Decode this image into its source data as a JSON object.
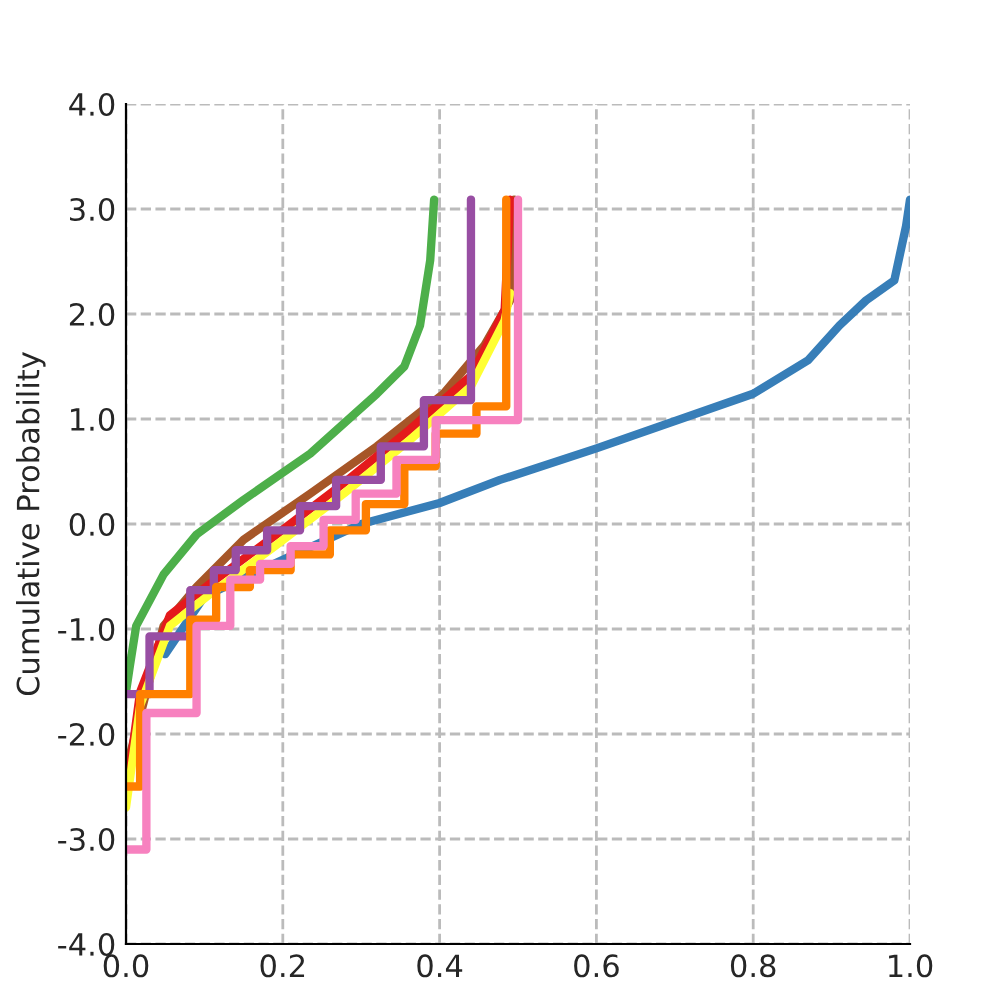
{
  "chart_data": {
    "type": "step",
    "ylabel": "Cumulative Probability",
    "xlim": [
      0,
      1
    ],
    "ylim": [
      -4,
      4
    ],
    "xticks": [
      {
        "value": 0,
        "label": "0.0"
      },
      {
        "value": 0.2,
        "label": "0.2"
      },
      {
        "value": 0.4,
        "label": "0.4"
      },
      {
        "value": 0.6,
        "label": "0.6"
      },
      {
        "value": 0.8,
        "label": "0.8"
      },
      {
        "value": 1,
        "label": "1.0"
      }
    ],
    "yticks": [
      {
        "value": -4,
        "label": "-4.0"
      },
      {
        "value": -3,
        "label": "-3.0"
      },
      {
        "value": -2,
        "label": "-2.0"
      },
      {
        "value": -1,
        "label": "-1.0"
      },
      {
        "value": 0,
        "label": "0.0"
      },
      {
        "value": 1,
        "label": "1.0"
      },
      {
        "value": 2,
        "label": "2.0"
      },
      {
        "value": 3,
        "label": "3.0"
      },
      {
        "value": 4,
        "label": "4.0"
      }
    ],
    "grid": true,
    "line_style": "solid",
    "marker": "none",
    "series": [
      {
        "type": "line",
        "color": "#377eb8",
        "x": [
          0.05,
          0.1,
          0.2,
          0.3,
          0.4,
          0.477,
          0.6,
          0.8,
          0.87,
          0.91,
          0.944,
          0.98,
          0.995,
          1.0
        ],
        "values": [
          -1.24,
          -0.69,
          -0.34,
          0.0,
          0.2,
          0.42,
          0.72,
          1.24,
          1.56,
          1.89,
          2.13,
          2.32,
          2.84,
          3.09
        ]
      },
      {
        "type": "line",
        "color": "#4daf4a",
        "x": [
          0,
          0.005,
          0.013,
          0.048,
          0.09,
          0.15,
          0.235,
          0.32,
          0.355,
          0.375,
          0.388,
          0.393
        ],
        "values": [
          -1.6,
          -1.35,
          -0.97,
          -0.48,
          -0.1,
          0.23,
          0.67,
          1.24,
          1.5,
          1.89,
          2.51,
          3.09
        ]
      },
      {
        "type": "line",
        "color": "#a65628",
        "x": [
          0,
          0.005,
          0.048,
          0.09,
          0.15,
          0.235,
          0.32,
          0.405,
          0.457,
          0.49,
          0.495
        ],
        "values": [
          -2.5,
          -2.2,
          -0.97,
          -0.6,
          -0.15,
          0.29,
          0.74,
          1.24,
          1.7,
          2.13,
          3.09
        ]
      },
      {
        "type": "line",
        "color": "#e41a1c",
        "x": [
          0,
          0.018,
          0.056,
          0.107,
          0.19,
          0.278,
          0.362,
          0.44,
          0.483,
          0.49
        ],
        "values": [
          -2.6,
          -1.6,
          -0.87,
          -0.57,
          -0.11,
          0.39,
          0.9,
          1.41,
          2.04,
          3.09
        ]
      },
      {
        "type": "line",
        "color": "#ffff33",
        "x": [
          0,
          0.018,
          0.056,
          0.107,
          0.19,
          0.278,
          0.362,
          0.44,
          0.483,
          0.49
        ],
        "values": [
          -2.7,
          -1.73,
          -0.97,
          -0.67,
          -0.21,
          0.29,
          0.8,
          1.31,
          1.94,
          2.2
        ]
      },
      {
        "color": "#984ea3",
        "x": [
          0,
          0.03,
          0.082,
          0.112,
          0.14,
          0.18,
          0.222,
          0.268,
          0.325,
          0.38,
          0.44,
          0.44
        ],
        "values": [
          -1.62,
          -1.07,
          -0.63,
          -0.44,
          -0.25,
          -0.06,
          0.17,
          0.42,
          0.74,
          1.18,
          1.37,
          3.09
        ]
      },
      {
        "color": "#ff7f00",
        "x": [
          0,
          0.018,
          0.082,
          0.115,
          0.158,
          0.21,
          0.26,
          0.306,
          0.355,
          0.395,
          0.447,
          0.485,
          0.485
        ],
        "values": [
          -2.5,
          -1.62,
          -0.91,
          -0.6,
          -0.44,
          -0.29,
          -0.06,
          0.19,
          0.55,
          0.86,
          1.12,
          1.56,
          3.09
        ]
      },
      {
        "color": "#f781bf",
        "x": [
          0,
          0.026,
          0.09,
          0.133,
          0.171,
          0.21,
          0.252,
          0.293,
          0.345,
          0.395,
          0.5,
          0.5
        ],
        "values": [
          -3.1,
          -1.8,
          -0.97,
          -0.53,
          -0.38,
          -0.21,
          0.04,
          0.29,
          0.61,
          0.99,
          1.64,
          3.09
        ]
      }
    ]
  }
}
